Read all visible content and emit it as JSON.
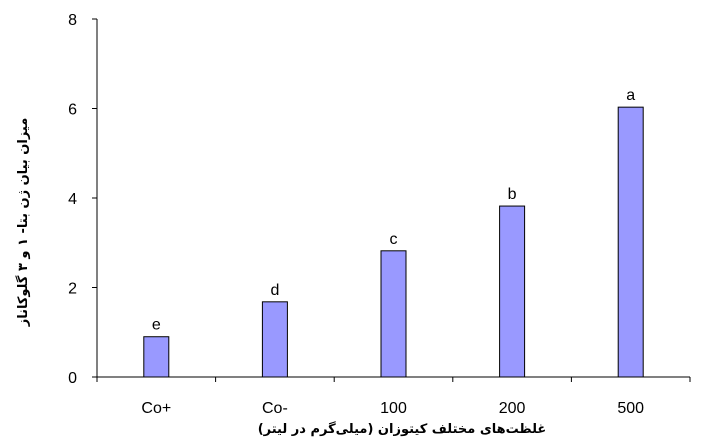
{
  "chart_data": {
    "type": "bar",
    "categories": [
      "Co+",
      "Co-",
      "100",
      "200",
      "500"
    ],
    "values": [
      0.9,
      1.68,
      2.82,
      3.82,
      6.03
    ],
    "significance_letters": [
      "e",
      "d",
      "c",
      "b",
      "a"
    ],
    "xlabel": "غلظت‌های مختلف کیتوزان (میلی‌گرم در لیتر)",
    "ylabel": "میزان بیان ژن بتا- ۱ و ۳ گلوکاناز",
    "ylim": [
      0,
      8
    ],
    "yticks": [
      0,
      2,
      4,
      6,
      8
    ],
    "grid": false,
    "bar_color": "#9999ff",
    "bar_stroke": "#000000"
  }
}
